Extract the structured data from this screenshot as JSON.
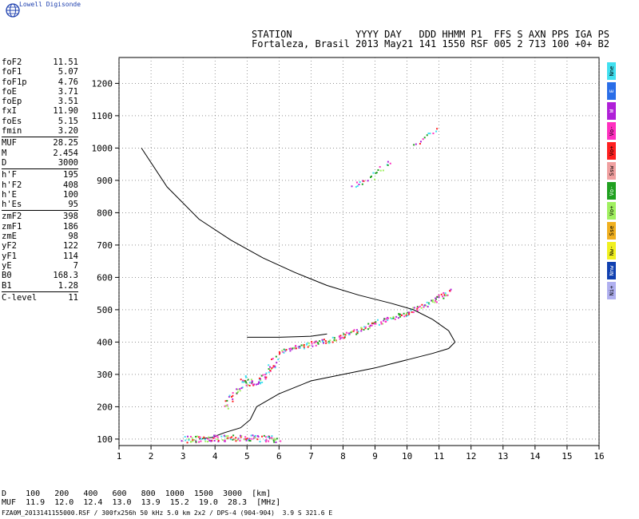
{
  "brand": "Lowell Digisonde",
  "header": {
    "line1": "STATION           YYYY DAY   DDD HHMM P1  FFS S AXN PPS IGA PS",
    "line2": "Fortaleza, Brasil 2013 May21 141 1550 RSF 005 2 713 100 +0+ B2"
  },
  "params": [
    {
      "k": "foF2",
      "v": "11.51"
    },
    {
      "k": "foF1",
      "v": "5.07"
    },
    {
      "k": "foF1p",
      "v": "4.76"
    },
    {
      "k": "foE",
      "v": "3.71"
    },
    {
      "k": "foEp",
      "v": "3.51"
    },
    {
      "k": "fxI",
      "v": "11.90"
    },
    {
      "k": "foEs",
      "v": "5.15"
    },
    {
      "k": "fmin",
      "v": "3.20"
    },
    {
      "sep": true
    },
    {
      "k": "MUF",
      "v": "28.25"
    },
    {
      "k": "M",
      "v": "2.454"
    },
    {
      "k": "D",
      "v": "3000"
    },
    {
      "sep": true
    },
    {
      "k": "h'F",
      "v": "195"
    },
    {
      "k": "h'F2",
      "v": "408"
    },
    {
      "k": "h'E",
      "v": "100"
    },
    {
      "k": "h'Es",
      "v": "95"
    },
    {
      "sep": true
    },
    {
      "k": "zmF2",
      "v": "398"
    },
    {
      "k": "zmF1",
      "v": "186"
    },
    {
      "k": "zmE",
      "v": "98"
    },
    {
      "k": "yF2",
      "v": "122"
    },
    {
      "k": "yF1",
      "v": "114"
    },
    {
      "k": "yE",
      "v": "7"
    },
    {
      "k": "B0",
      "v": "168.3"
    },
    {
      "k": "B1",
      "v": "1.28"
    },
    {
      "sep": true
    },
    {
      "k": "C-level",
      "v": "11"
    }
  ],
  "legend": [
    {
      "label": "Nne",
      "color": "#40e0f0"
    },
    {
      "label": "E",
      "color": "#2a6ee8"
    },
    {
      "label": "W",
      "color": "#b020d8"
    },
    {
      "label": "Vo-",
      "color": "#ff30c0"
    },
    {
      "label": "Vo+",
      "color": "#ff2020"
    },
    {
      "label": "Ssw",
      "color": "#f0a0a0"
    },
    {
      "label": "Vo-",
      "color": "#20a020"
    },
    {
      "label": "Vo+",
      "color": "#a0f060"
    },
    {
      "label": "Sse",
      "color": "#f0b020"
    },
    {
      "label": "Nw-",
      "color": "#f0f020"
    },
    {
      "label": "Nnw",
      "color": "#1040b0"
    },
    {
      "label": "Ni+",
      "color": "#b0b0f0"
    }
  ],
  "bottom": {
    "dline": "D    100   200   400   600   800  1000  1500  3000  [km]",
    "mufline": "MUF  11.9  12.0  12.4  13.0  13.9  15.2  19.0  28.3  [MHz]",
    "footer": "FZA0M_2013141155000.RSF / 300fx256h 50 kHz 5.0 km 2x2 / DPS-4 (904-904)  3.9 S 321.6 E"
  },
  "chart_data": {
    "type": "scatter",
    "xlim": [
      1,
      16
    ],
    "ylim": [
      80,
      1280
    ],
    "xticks": [
      1,
      2,
      3,
      4,
      5,
      6,
      7,
      8,
      9,
      10,
      11,
      12,
      13,
      14,
      15,
      16
    ],
    "yticks": [
      100,
      200,
      300,
      400,
      500,
      600,
      700,
      800,
      900,
      1000,
      1100,
      1200
    ],
    "grid": true,
    "profile": [
      [
        1.7,
        1000
      ],
      [
        2.5,
        880
      ],
      [
        3.5,
        780
      ],
      [
        4.5,
        715
      ],
      [
        5.5,
        660
      ],
      [
        6.5,
        615
      ],
      [
        7.5,
        575
      ],
      [
        8.5,
        545
      ],
      [
        9.5,
        520
      ],
      [
        10.2,
        500
      ],
      [
        10.8,
        470
      ],
      [
        11.3,
        435
      ],
      [
        11.5,
        400
      ],
      [
        11.3,
        380
      ],
      [
        10.8,
        365
      ],
      [
        10,
        345
      ],
      [
        9,
        320
      ],
      [
        8,
        300
      ],
      [
        7,
        280
      ],
      [
        6,
        240
      ],
      [
        5.3,
        200
      ],
      [
        5.1,
        160
      ],
      [
        4.8,
        135
      ],
      [
        4.3,
        120
      ],
      [
        3.9,
        105
      ],
      [
        3.5,
        100
      ]
    ],
    "trace_F2": [
      [
        6,
        370
      ],
      [
        6.5,
        385
      ],
      [
        7,
        395
      ],
      [
        7.5,
        405
      ],
      [
        8,
        420
      ],
      [
        8.5,
        440
      ],
      [
        9,
        460
      ],
      [
        9.5,
        475
      ],
      [
        10,
        490
      ],
      [
        10.5,
        515
      ],
      [
        11,
        540
      ],
      [
        11.3,
        560
      ]
    ],
    "trace_F1": [
      [
        4.3,
        200
      ],
      [
        4.6,
        240
      ],
      [
        4.9,
        290
      ],
      [
        5.1,
        270
      ],
      [
        5.4,
        280
      ],
      [
        5.7,
        320
      ],
      [
        5.9,
        350
      ]
    ],
    "trace_E": [
      [
        3,
        100
      ],
      [
        3.5,
        102
      ],
      [
        4,
        104
      ],
      [
        4.5,
        106
      ],
      [
        5,
        105
      ],
      [
        5.5,
        103
      ],
      [
        6,
        102
      ]
    ],
    "trace_upper": [
      [
        8.3,
        880
      ],
      [
        8.7,
        900
      ],
      [
        9.1,
        930
      ],
      [
        9.5,
        960
      ]
    ],
    "trace_high": [
      [
        10.2,
        1010
      ],
      [
        10.6,
        1040
      ],
      [
        11,
        1065
      ]
    ],
    "cusp_line": [
      [
        5,
        415
      ],
      [
        6,
        415
      ],
      [
        7,
        418
      ],
      [
        7.5,
        425
      ]
    ]
  }
}
